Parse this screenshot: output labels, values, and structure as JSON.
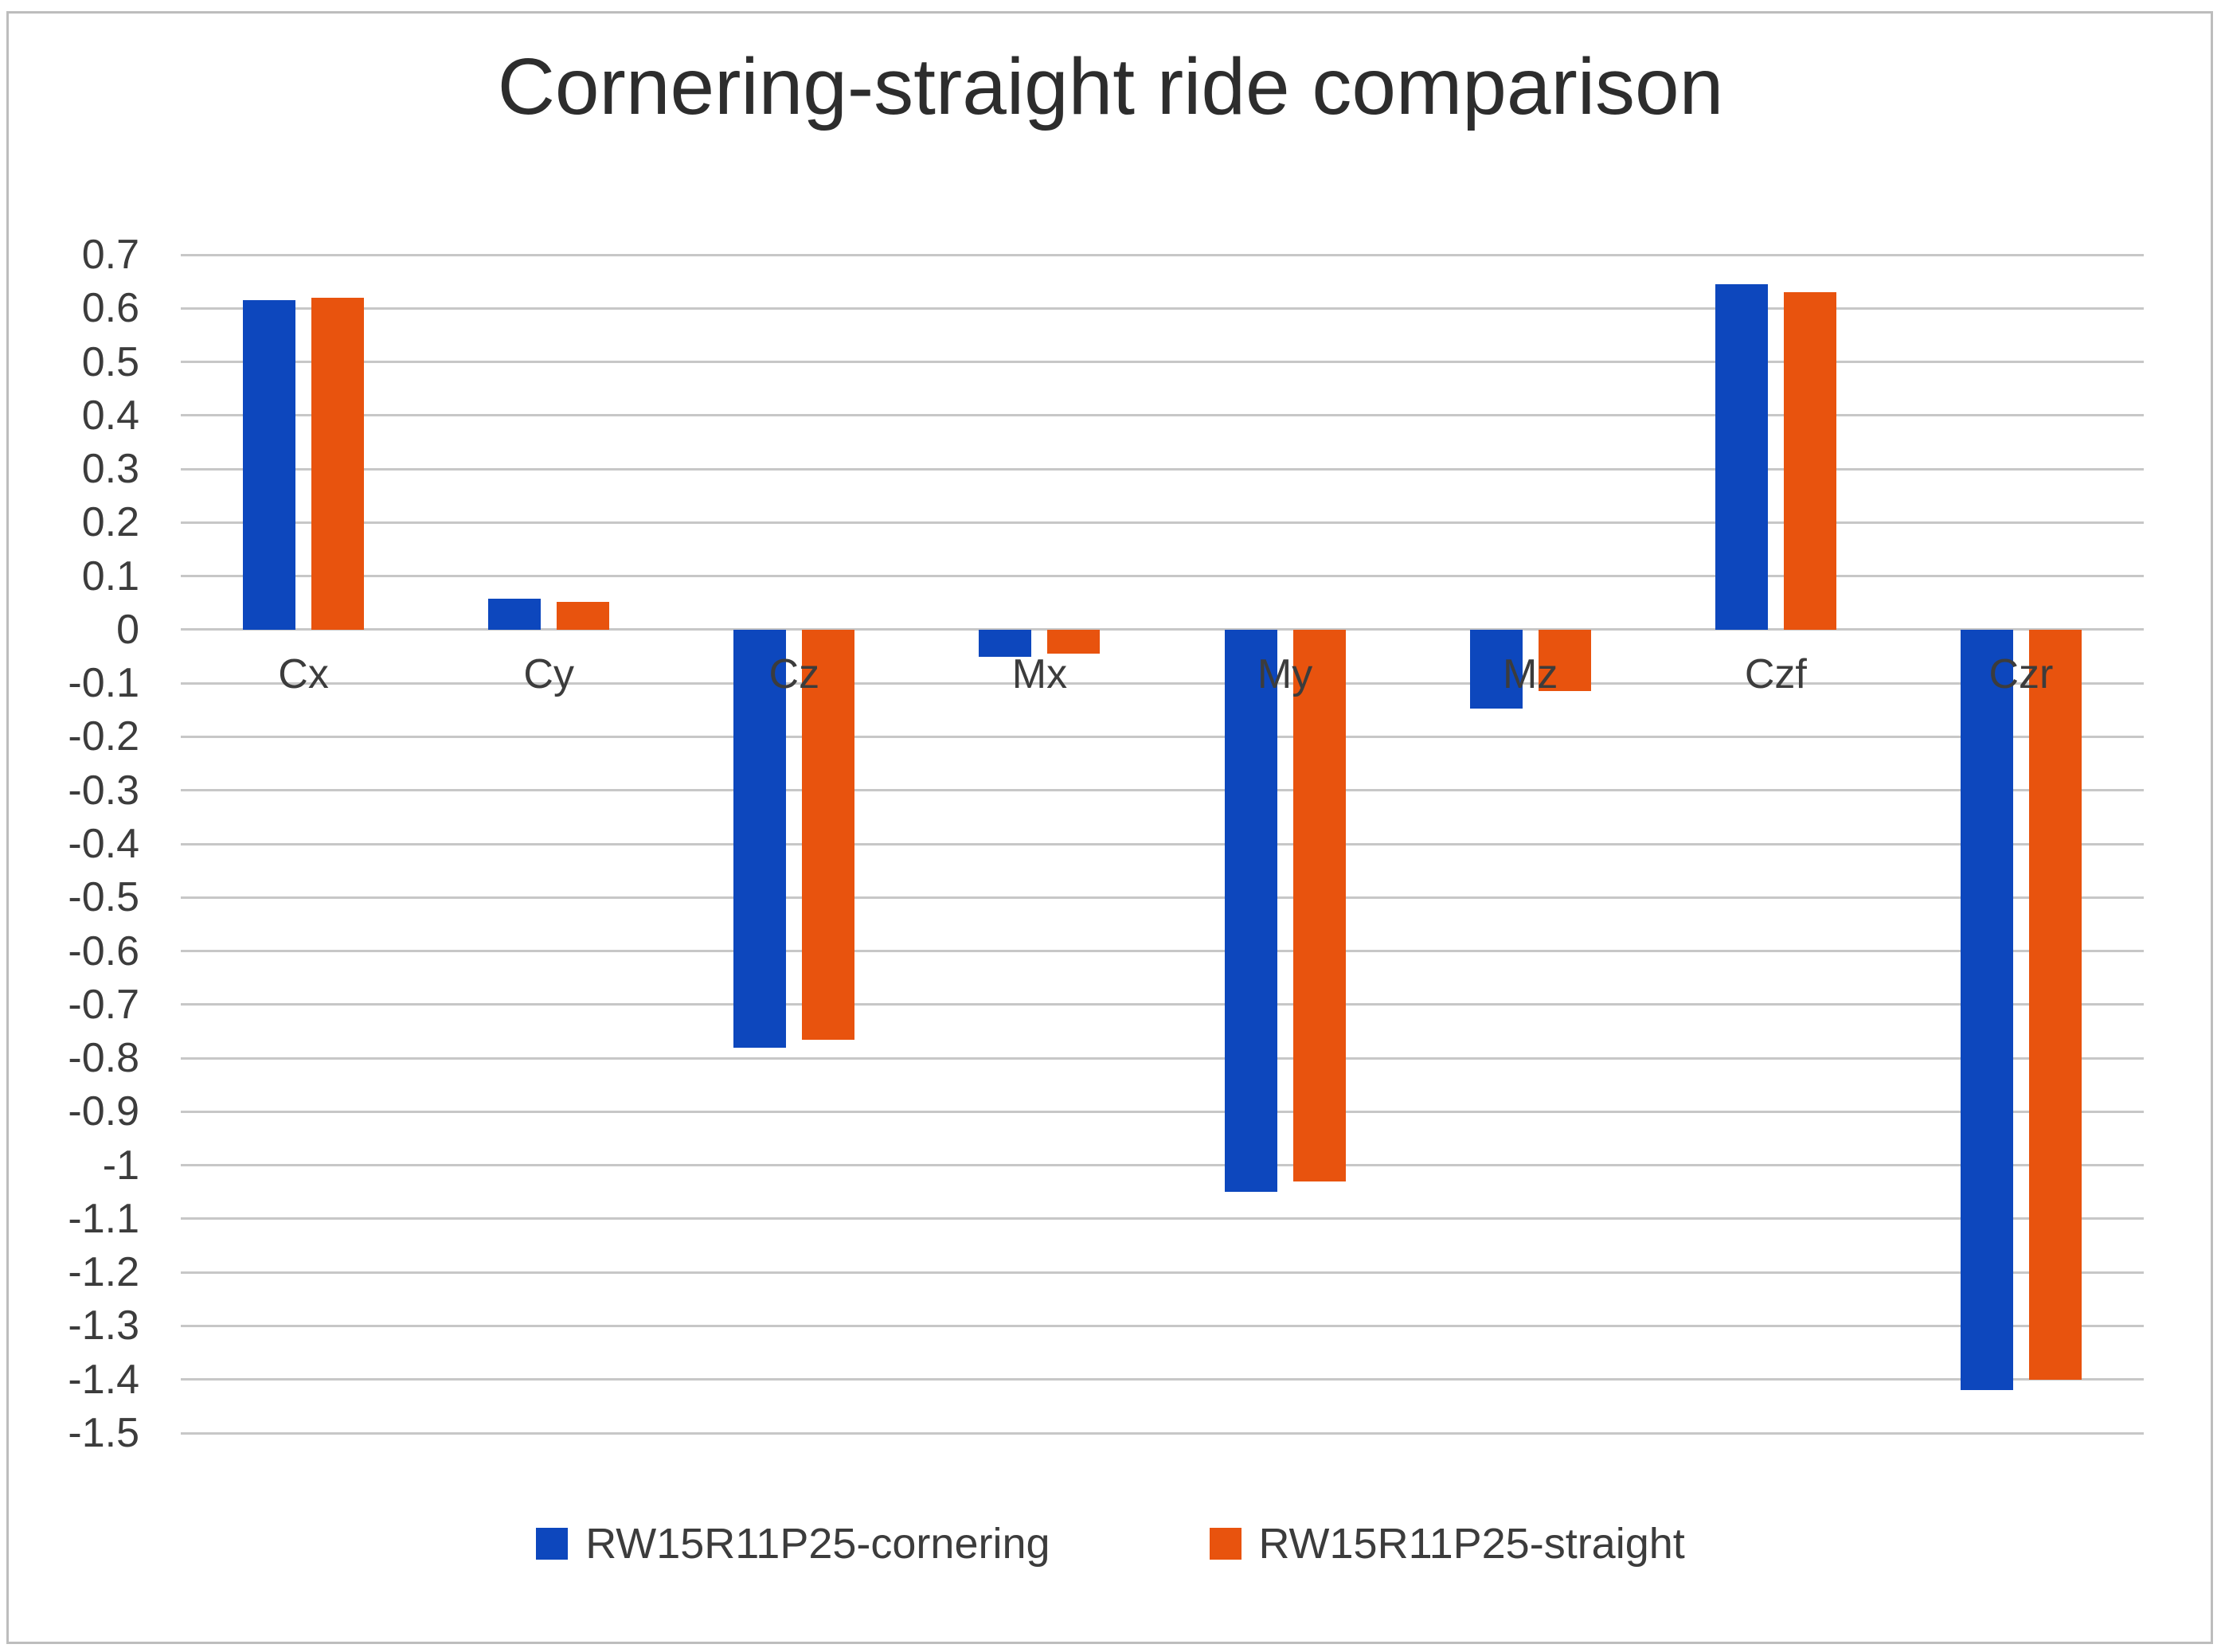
{
  "title": "Cornering-straight ride comparison",
  "chart_data": {
    "type": "bar",
    "title": "Cornering-straight ride comparison",
    "categories": [
      "Cx",
      "Cy",
      "Cz",
      "Mx",
      "My",
      "Mz",
      "Czf",
      "Czr"
    ],
    "series": [
      {
        "name": "RW15R11P25-cornering",
        "color": "#0d47bd",
        "values": [
          0.615,
          0.058,
          -0.78,
          -0.05,
          -1.05,
          -0.148,
          0.645,
          -1.42
        ]
      },
      {
        "name": "RW15R11P25-straight",
        "color": "#e8530e",
        "values": [
          0.62,
          0.052,
          -0.765,
          -0.045,
          -1.03,
          -0.115,
          0.63,
          -1.4
        ]
      }
    ],
    "xlabel": "",
    "ylabel": "",
    "ylim": [
      -1.5,
      0.7
    ],
    "ytick_step": 0.1,
    "ytick_labels": [
      "0.7",
      "0.6",
      "0.5",
      "0.4",
      "0.3",
      "0.2",
      "0.1",
      "0",
      "-0.1",
      "-0.2",
      "-0.3",
      "-0.4",
      "-0.5",
      "-0.6",
      "-0.7",
      "-0.8",
      "-0.9",
      "-1",
      "-1.1",
      "-1.2",
      "-1.3",
      "-1.4",
      "-1.5"
    ],
    "grid": true,
    "gridline_color": "#c7c7c7",
    "legend_position": "bottom",
    "legend": [
      "RW15R11P25-cornering",
      "RW15R11P25-straight"
    ]
  },
  "colors": {
    "series_cornering": "#0d47bd",
    "series_straight": "#e8530e",
    "gridline": "#c7c7c7",
    "axis_text": "#3c3c3c",
    "title_text": "#2d2d2d",
    "frame_border": "#bdbdbd",
    "background": "#ffffff"
  }
}
